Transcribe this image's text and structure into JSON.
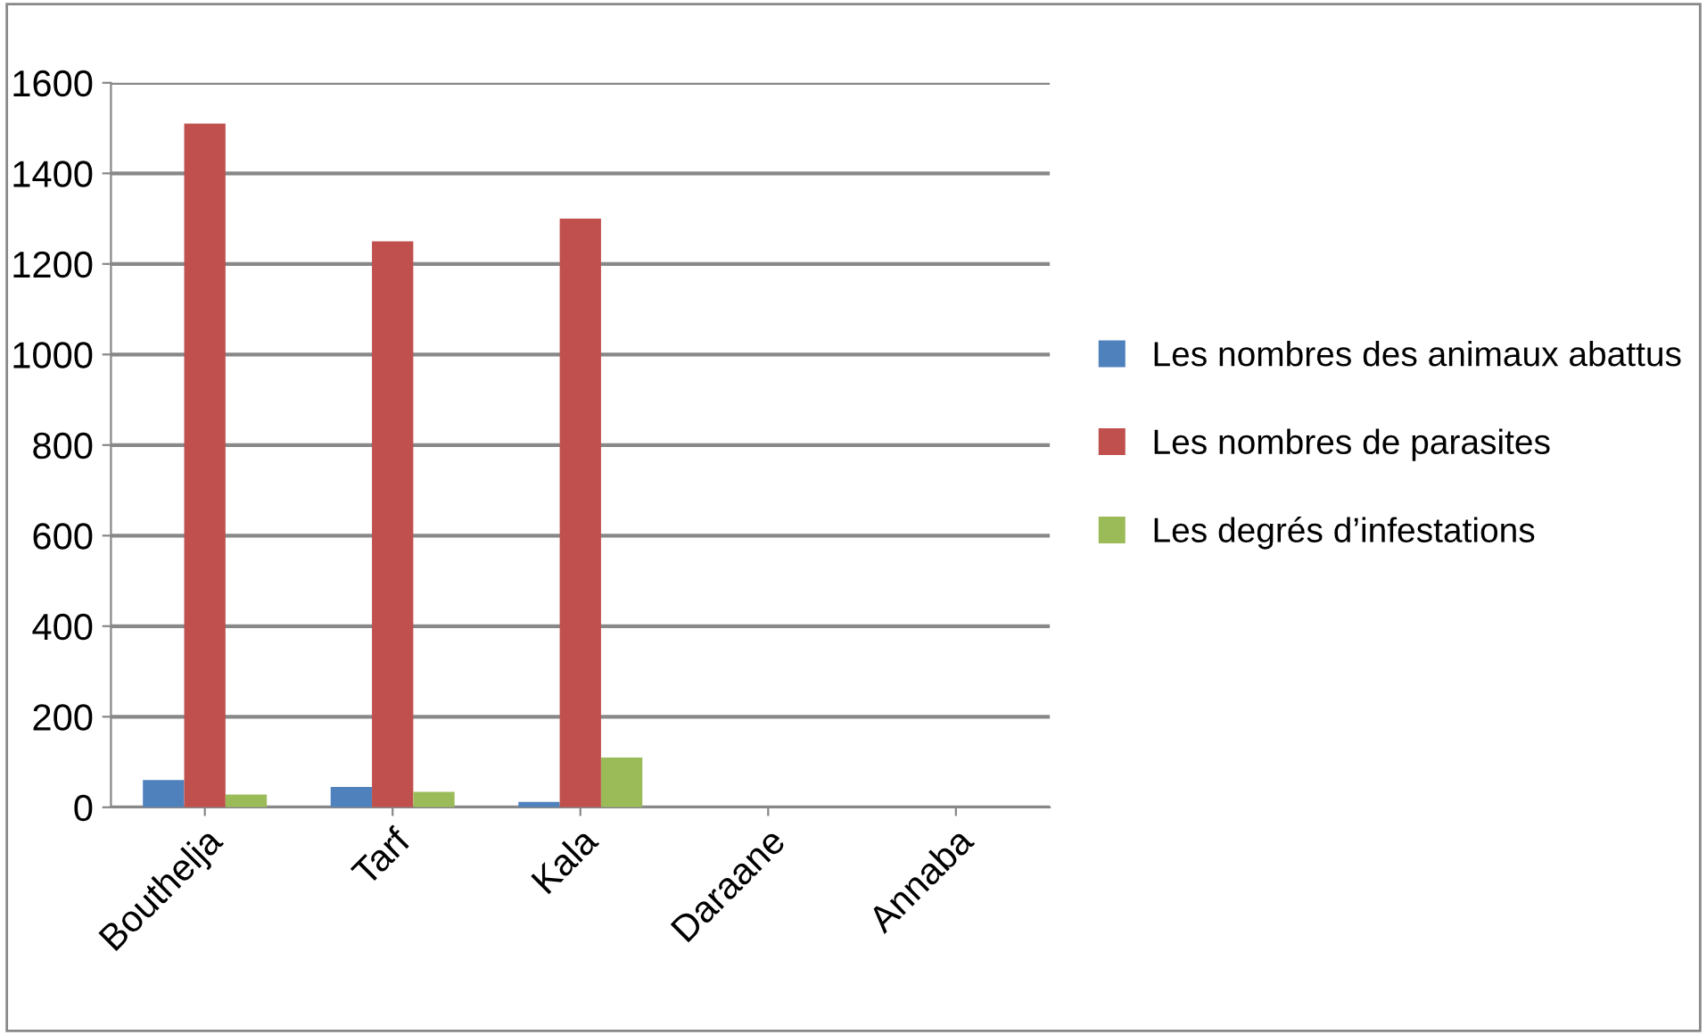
{
  "chart_data": {
    "type": "bar",
    "categories": [
      "Bouthelja",
      "Tarf",
      "Kala",
      "Daraane",
      "Annaba"
    ],
    "series": [
      {
        "name": "Les nombres des animaux abattus",
        "color": "#4f81bd",
        "values": [
          60,
          45,
          12,
          0,
          0
        ]
      },
      {
        "name": "Les nombres de parasites",
        "color": "#c0504d",
        "values": [
          1510,
          1250,
          1300,
          0,
          0
        ]
      },
      {
        "name": "Les degrés d’infestations",
        "color": "#9bbb59",
        "values": [
          28,
          34,
          110,
          0,
          0
        ]
      }
    ],
    "ylim": [
      0,
      1600
    ],
    "yticks": [
      0,
      200,
      400,
      600,
      800,
      1000,
      1200,
      1400,
      1600
    ],
    "grid": "y",
    "legend": "right"
  }
}
